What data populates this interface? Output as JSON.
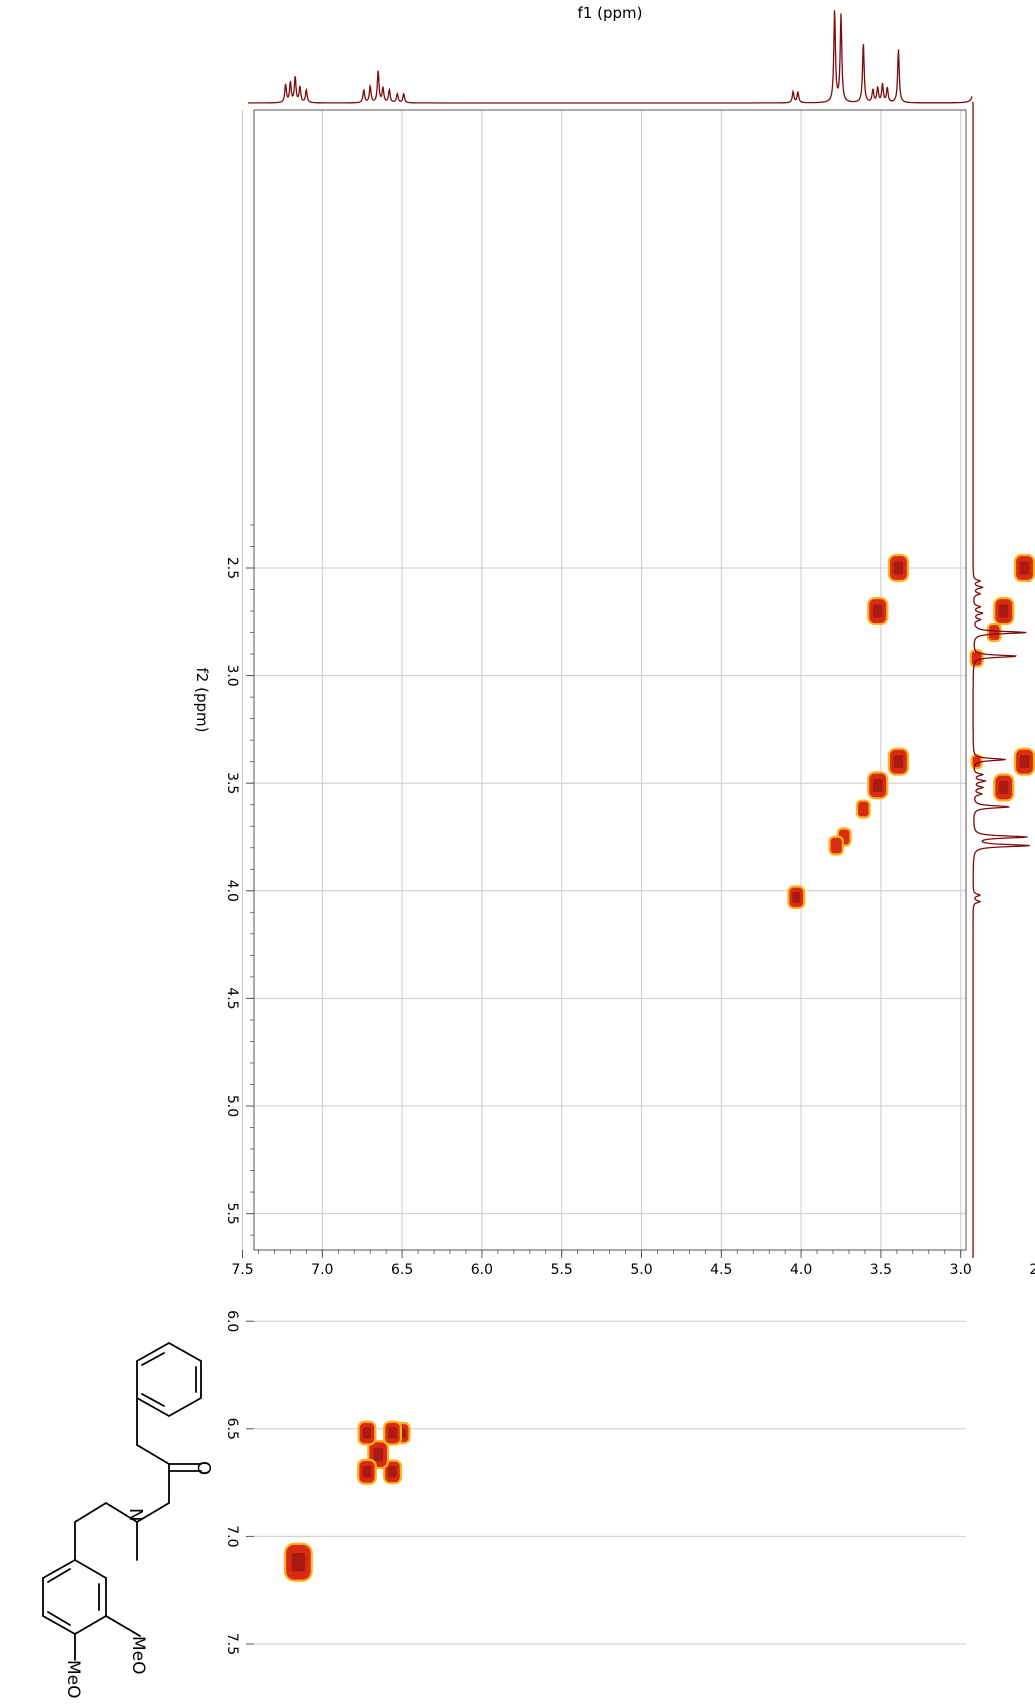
{
  "colors": {
    "spectrum_line": "#7a0c0c",
    "grid": "#cccccc",
    "frame": "#555555",
    "peak_fill": "#d72c12",
    "peak_edge": "#ffb020",
    "peak_core": "#9a1410",
    "structure_line": "#000000"
  },
  "structure": {
    "name": "N-[2-(3,4-dimethoxyphenyl)ethyl]-N-methyl-2-phenylacetamide",
    "labels": {
      "ome1": "MeO",
      "ome2": "MeO",
      "n": "N",
      "o": "O"
    }
  },
  "chart_data": {
    "type": "heatmap",
    "subtype": "2D NMR COSY contour plot with projected 1H spectra (page rotated 90 degrees)",
    "xlabel": "f2 (ppm)",
    "ylabel": "f1 (ppm)",
    "f2_range": [
      2.2,
      7.55
    ],
    "f1_range": [
      2.2,
      7.55
    ],
    "f2_ticks": [
      "2.5",
      "3.0",
      "3.5",
      "4.0",
      "4.5",
      "5.0",
      "5.5",
      "6.0",
      "6.5",
      "7.0",
      "7.5"
    ],
    "f1_ticks": [
      "2.5",
      "3.0",
      "3.5",
      "4.0",
      "4.5",
      "5.0",
      "5.5",
      "6.0",
      "6.5",
      "7.0",
      "7.5"
    ],
    "grid": true,
    "projection_1d": {
      "peaks": [
        {
          "ppm": 2.56,
          "height": 0.12
        },
        {
          "ppm": 2.59,
          "height": 0.16
        },
        {
          "ppm": 2.62,
          "height": 0.12
        },
        {
          "ppm": 2.68,
          "height": 0.12
        },
        {
          "ppm": 2.71,
          "height": 0.16
        },
        {
          "ppm": 2.74,
          "height": 0.12
        },
        {
          "ppm": 2.8,
          "height": 0.95
        },
        {
          "ppm": 2.91,
          "height": 0.78
        },
        {
          "ppm": 3.39,
          "height": 0.58
        },
        {
          "ppm": 3.46,
          "height": 0.16
        },
        {
          "ppm": 3.49,
          "height": 0.2
        },
        {
          "ppm": 3.52,
          "height": 0.16
        },
        {
          "ppm": 3.55,
          "height": 0.14
        },
        {
          "ppm": 3.61,
          "height": 0.65
        },
        {
          "ppm": 3.75,
          "height": 0.95
        },
        {
          "ppm": 3.79,
          "height": 1.0
        },
        {
          "ppm": 4.02,
          "height": 0.12
        },
        {
          "ppm": 4.05,
          "height": 0.12
        },
        {
          "ppm": 6.49,
          "height": 0.1
        },
        {
          "ppm": 6.53,
          "height": 0.1
        },
        {
          "ppm": 6.58,
          "height": 0.14
        },
        {
          "ppm": 6.62,
          "height": 0.16
        },
        {
          "ppm": 6.65,
          "height": 0.35
        },
        {
          "ppm": 6.7,
          "height": 0.18
        },
        {
          "ppm": 6.74,
          "height": 0.14
        },
        {
          "ppm": 7.1,
          "height": 0.14
        },
        {
          "ppm": 7.14,
          "height": 0.17
        },
        {
          "ppm": 7.17,
          "height": 0.28
        },
        {
          "ppm": 7.2,
          "height": 0.22
        },
        {
          "ppm": 7.23,
          "height": 0.2
        }
      ]
    },
    "cross_peaks": [
      {
        "f2": 2.5,
        "f1": 2.6,
        "size": 1
      },
      {
        "f2": 2.7,
        "f1": 2.73,
        "size": 1
      },
      {
        "f2": 2.8,
        "f1": 2.79,
        "size": 0.3
      },
      {
        "f2": 2.92,
        "f1": 2.9,
        "size": 0.25
      },
      {
        "f2": 3.4,
        "f1": 2.6,
        "size": 1
      },
      {
        "f2": 3.52,
        "f1": 2.73,
        "size": 1
      },
      {
        "f2": 3.4,
        "f1": 2.9,
        "size": 0.12
      },
      {
        "f2": 2.5,
        "f1": 3.39,
        "size": 1
      },
      {
        "f2": 2.7,
        "f1": 3.52,
        "size": 1
      },
      {
        "f2": 3.4,
        "f1": 3.39,
        "size": 1
      },
      {
        "f2": 3.51,
        "f1": 3.52,
        "size": 1
      },
      {
        "f2": 3.62,
        "f1": 3.61,
        "size": 0.3
      },
      {
        "f2": 3.75,
        "f1": 3.73,
        "size": 0.3
      },
      {
        "f2": 3.79,
        "f1": 3.78,
        "size": 0.35
      },
      {
        "f2": 4.03,
        "f1": 4.03,
        "size": 0.6
      },
      {
        "f2": 6.52,
        "f1": 6.5,
        "size": 0.5
      },
      {
        "f2": 6.52,
        "f1": 6.56,
        "size": 0.7
      },
      {
        "f2": 6.7,
        "f1": 6.56,
        "size": 0.7
      },
      {
        "f2": 6.62,
        "f1": 6.65,
        "size": 1.1
      },
      {
        "f2": 6.52,
        "f1": 6.72,
        "size": 0.7
      },
      {
        "f2": 6.7,
        "f1": 6.72,
        "size": 0.8
      },
      {
        "f2": 7.12,
        "f1": 7.15,
        "size": 2.4
      }
    ]
  }
}
